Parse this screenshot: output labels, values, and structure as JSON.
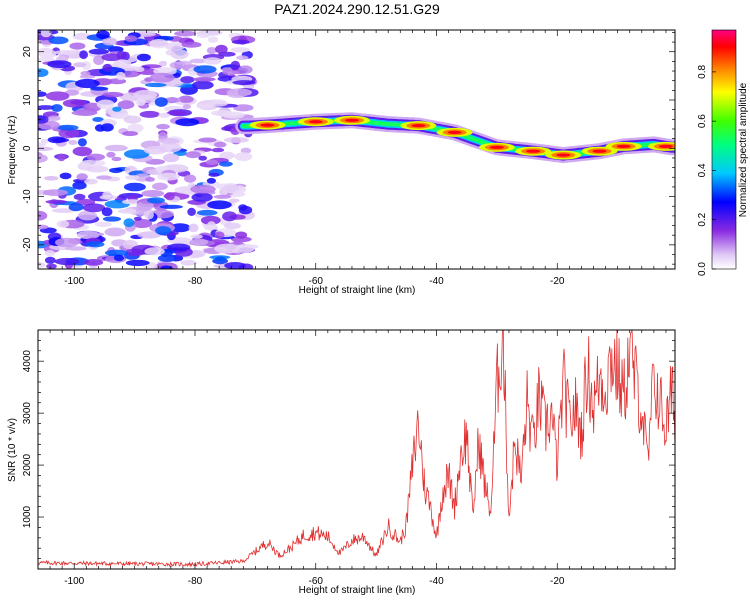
{
  "title": "PAZ1.2024.290.12.51.G29",
  "chart_data": [
    {
      "type": "heatmap",
      "xlabel": "Height of straight line (km)",
      "ylabel": "Frequency (Hz)",
      "xlim": [
        -106,
        -0.5
      ],
      "ylim": [
        -25,
        24.5
      ],
      "xticks": [
        -100,
        -80,
        -60,
        -40,
        -20
      ],
      "yticks": [
        -20,
        -10,
        0,
        10,
        20
      ],
      "colorbar": {
        "label": "Normalized spectral amplitude",
        "range": [
          0,
          0.97
        ],
        "ticks": [
          0.0,
          0.2,
          0.4,
          0.6,
          0.8
        ],
        "colormap": "rainbow (white-violet-blue-cyan-green-yellow-orange-red-magenta)"
      },
      "signal_ridge": {
        "x": [
          -71,
          -68,
          -60,
          -54,
          -48,
          -43,
          -37,
          -30,
          -24,
          -19,
          -13,
          -9,
          -4,
          -1
        ],
        "y": [
          4.6,
          4.8,
          5.5,
          5.8,
          5.0,
          4.7,
          3.3,
          0.2,
          -0.6,
          -1.4,
          -0.6,
          0.4,
          0.8,
          0.2
        ]
      },
      "noise_region": "x < -71 km, scattered amplitude 0.05 - 0.4 across all frequencies"
    },
    {
      "type": "line",
      "xlabel": "Height of straight line (km)",
      "ylabel": "SNR (10 * v/v)",
      "xlim": [
        -106,
        -0.5
      ],
      "ylim": [
        0,
        4600
      ],
      "xticks": [
        -100,
        -80,
        -60,
        -40,
        -20
      ],
      "yticks": [
        1000,
        2000,
        3000,
        4000
      ],
      "series": [
        {
          "color": "#e03030",
          "x": [
            -106,
            -100,
            -90,
            -80,
            -72,
            -68,
            -66,
            -64,
            -62,
            -60,
            -58,
            -56,
            -54,
            -52,
            -50,
            -48,
            -46,
            -45,
            -44,
            -43,
            -42,
            -41,
            -40,
            -39,
            -38,
            -37,
            -36,
            -35,
            -34,
            -33,
            -32,
            -31,
            -30,
            -29,
            -28,
            -27,
            -26,
            -25,
            -24,
            -23,
            -22,
            -21,
            -20,
            -19,
            -18,
            -17,
            -16,
            -15,
            -14,
            -13,
            -12,
            -11,
            -10,
            -9,
            -8,
            -7,
            -6,
            -5,
            -4,
            -3,
            -2,
            -1,
            -0.5
          ],
          "y": [
            120,
            110,
            100,
            90,
            150,
            520,
            260,
            420,
            650,
            700,
            620,
            300,
            550,
            620,
            250,
            820,
            520,
            850,
            1950,
            2850,
            1600,
            1200,
            600,
            1500,
            1800,
            1200,
            2200,
            2600,
            1000,
            2500,
            1600,
            1100,
            3500,
            4600,
            1000,
            2500,
            1700,
            3200,
            2400,
            3300,
            2700,
            3000,
            2000,
            3600,
            2800,
            3100,
            2600,
            3900,
            3100,
            3700,
            3500,
            4100,
            3800,
            3300,
            4200,
            3600,
            3100,
            2000,
            3700,
            3200,
            2700,
            3400,
            3000
          ]
        }
      ]
    }
  ]
}
